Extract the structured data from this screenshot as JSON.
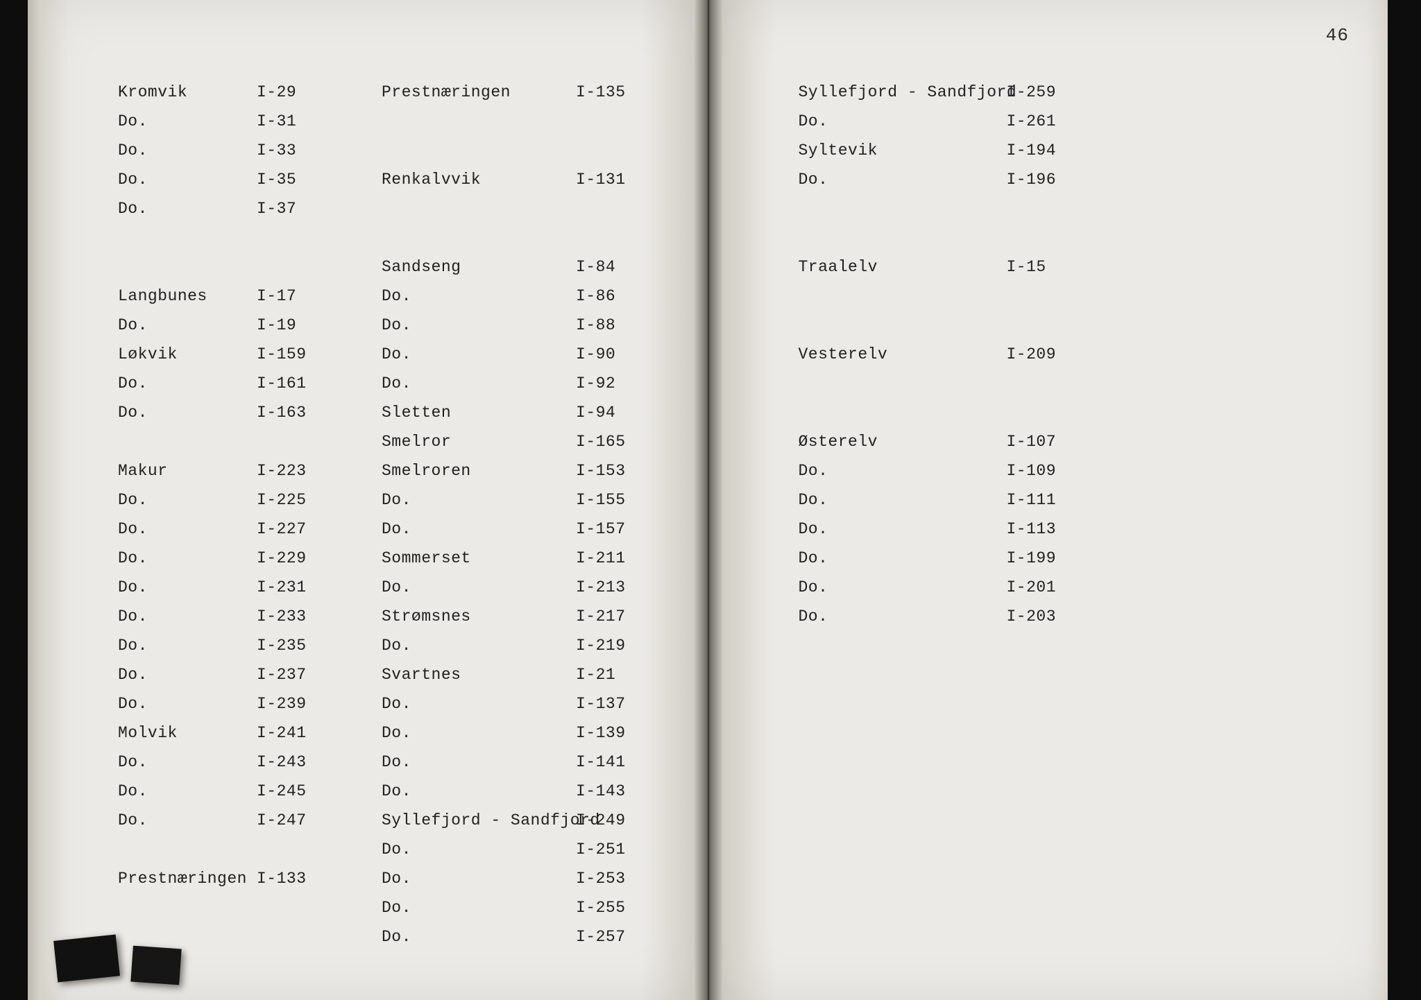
{
  "page_number": "46",
  "left_page": {
    "col1": [
      {
        "name": "Kromvik",
        "code": "I-29"
      },
      {
        "name": "Do.",
        "code": "I-31"
      },
      {
        "name": "Do.",
        "code": "I-33"
      },
      {
        "name": "Do.",
        "code": "I-35"
      },
      {
        "name": "Do.",
        "code": "I-37"
      },
      {
        "gap": true
      },
      {
        "gap": true
      },
      {
        "name": "Langbunes",
        "code": "I-17"
      },
      {
        "name": "Do.",
        "code": "I-19"
      },
      {
        "name": "Løkvik",
        "code": "I-159"
      },
      {
        "name": "Do.",
        "code": "I-161"
      },
      {
        "name": "Do.",
        "code": "I-163"
      },
      {
        "gap": true
      },
      {
        "name": "Makur",
        "code": "I-223"
      },
      {
        "name": "Do.",
        "code": "I-225"
      },
      {
        "name": "Do.",
        "code": "I-227"
      },
      {
        "name": "Do.",
        "code": "I-229"
      },
      {
        "name": "Do.",
        "code": "I-231"
      },
      {
        "name": "Do.",
        "code": "I-233"
      },
      {
        "name": "Do.",
        "code": "I-235"
      },
      {
        "name": "Do.",
        "code": "I-237"
      },
      {
        "name": "Do.",
        "code": "I-239"
      },
      {
        "name": "Molvik",
        "code": "I-241"
      },
      {
        "name": "Do.",
        "code": "I-243"
      },
      {
        "name": "Do.",
        "code": "I-245"
      },
      {
        "name": "Do.",
        "code": "I-247"
      },
      {
        "gap": true
      },
      {
        "name": "Prestnæringen",
        "code": "I-133"
      }
    ],
    "col2": [
      {
        "name": "Prestnæringen",
        "code": "I-135"
      },
      {
        "gap": true
      },
      {
        "gap": true
      },
      {
        "name": "Renkalvvik",
        "code": "I-131"
      },
      {
        "gap": true
      },
      {
        "gap": true
      },
      {
        "name": "Sandseng",
        "code": "I-84"
      },
      {
        "name": "Do.",
        "code": "I-86"
      },
      {
        "name": "Do.",
        "code": "I-88"
      },
      {
        "name": "Do.",
        "code": "I-90"
      },
      {
        "name": "Do.",
        "code": "I-92"
      },
      {
        "name": "Sletten",
        "code": "I-94"
      },
      {
        "name": "Smelror",
        "code": "I-165"
      },
      {
        "name": "Smelroren",
        "code": "I-153"
      },
      {
        "name": "Do.",
        "code": "I-155"
      },
      {
        "name": "Do.",
        "code": "I-157"
      },
      {
        "name": "Sommerset",
        "code": "I-211"
      },
      {
        "name": "Do.",
        "code": "I-213"
      },
      {
        "name": "Strømsnes",
        "code": "I-217"
      },
      {
        "name": "Do.",
        "code": "I-219"
      },
      {
        "name": "Svartnes",
        "code": "I-21"
      },
      {
        "name": "Do.",
        "code": "I-137"
      },
      {
        "name": "Do.",
        "code": "I-139"
      },
      {
        "name": "Do.",
        "code": "I-141"
      },
      {
        "name": "Do.",
        "code": "I-143"
      },
      {
        "name": "Syllefjord - Sandfjord",
        "code": "I-249"
      },
      {
        "name": "Do.",
        "code": "I-251"
      },
      {
        "name": "Do.",
        "code": "I-253"
      },
      {
        "name": "Do.",
        "code": "I-255"
      },
      {
        "name": "Do.",
        "code": "I-257"
      }
    ]
  },
  "right_page": {
    "col1": [
      {
        "name": "Syllefjord - Sandfjord",
        "code": "I-259"
      },
      {
        "name": "Do.",
        "code": "I-261"
      },
      {
        "name": "Syltevik",
        "code": "I-194"
      },
      {
        "name": "Do.",
        "code": "I-196"
      },
      {
        "gap": true
      },
      {
        "gap": true
      },
      {
        "name": "Traalelv",
        "code": "I-15"
      },
      {
        "gap": true
      },
      {
        "gap": true
      },
      {
        "name": "Vesterelv",
        "code": "I-209"
      },
      {
        "gap": true
      },
      {
        "gap": true
      },
      {
        "name": "Østerelv",
        "code": "I-107"
      },
      {
        "name": "Do.",
        "code": "I-109"
      },
      {
        "name": "Do.",
        "code": "I-111"
      },
      {
        "name": "Do.",
        "code": "I-113"
      },
      {
        "name": "Do.",
        "code": "I-199"
      },
      {
        "name": "Do.",
        "code": "I-201"
      },
      {
        "name": "Do.",
        "code": "I-203"
      }
    ]
  }
}
